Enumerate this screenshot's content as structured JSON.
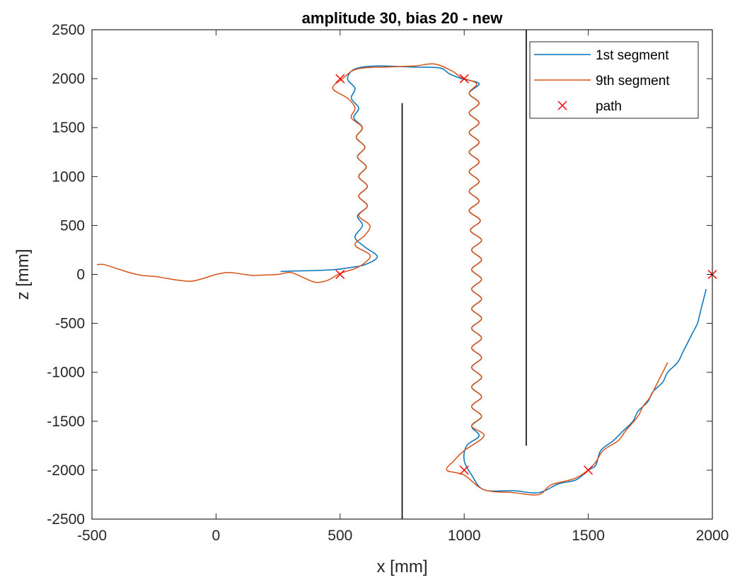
{
  "chart_data": {
    "type": "line",
    "title": "amplitude 30, bias 20 - new",
    "xlabel": "x [mm]",
    "ylabel": "z [mm]",
    "xlim": [
      -500,
      2000
    ],
    "ylim": [
      -2500,
      2500
    ],
    "xticks": [
      -500,
      0,
      500,
      1000,
      1500,
      2000
    ],
    "yticks": [
      -2500,
      -2000,
      -1500,
      -1000,
      -500,
      0,
      500,
      1000,
      1500,
      2000,
      2500
    ],
    "xtick_labels": [
      "-500",
      "0",
      "500",
      "1000",
      "1500",
      "2000"
    ],
    "ytick_labels": [
      "-2500",
      "-2000",
      "-1500",
      "-1000",
      "-500",
      "0",
      "500",
      "1000",
      "1500",
      "2000",
      "2500"
    ],
    "grid": false,
    "legend_position": "top-right",
    "colors": {
      "seg1": "#0072BD",
      "seg9": "#D95319",
      "path": "#FF0000",
      "wall": "#000000"
    },
    "walls": [
      {
        "x": 750,
        "z": [
          -2500,
          1750
        ]
      },
      {
        "x": 1250,
        "z": [
          -1750,
          2500
        ]
      }
    ],
    "series": [
      {
        "name": "1st segment",
        "points": [
          [
            260,
            30
          ],
          [
            320,
            35
          ],
          [
            400,
            40
          ],
          [
            480,
            50
          ],
          [
            540,
            70
          ],
          [
            600,
            100
          ],
          [
            650,
            180
          ],
          [
            600,
            280
          ],
          [
            560,
            380
          ],
          [
            590,
            500
          ],
          [
            570,
            600
          ],
          [
            610,
            700
          ],
          [
            575,
            800
          ],
          [
            610,
            900
          ],
          [
            575,
            1000
          ],
          [
            605,
            1100
          ],
          [
            570,
            1200
          ],
          [
            600,
            1300
          ],
          [
            565,
            1400
          ],
          [
            590,
            1500
          ],
          [
            555,
            1600
          ],
          [
            575,
            1700
          ],
          [
            545,
            1800
          ],
          [
            560,
            1900
          ],
          [
            530,
            2000
          ],
          [
            560,
            2100
          ],
          [
            650,
            2130
          ],
          [
            780,
            2120
          ],
          [
            900,
            2110
          ],
          [
            940,
            2050
          ],
          [
            990,
            2000
          ],
          [
            1060,
            1950
          ],
          [
            1020,
            1850
          ],
          [
            1060,
            1750
          ],
          [
            1020,
            1650
          ],
          [
            1060,
            1550
          ],
          [
            1020,
            1450
          ],
          [
            1060,
            1350
          ],
          [
            1020,
            1250
          ],
          [
            1060,
            1150
          ],
          [
            1020,
            1050
          ],
          [
            1060,
            950
          ],
          [
            1020,
            850
          ],
          [
            1060,
            750
          ],
          [
            1020,
            650
          ],
          [
            1065,
            550
          ],
          [
            1025,
            450
          ],
          [
            1070,
            350
          ],
          [
            1030,
            250
          ],
          [
            1070,
            150
          ],
          [
            1030,
            50
          ],
          [
            1070,
            -50
          ],
          [
            1030,
            -150
          ],
          [
            1070,
            -250
          ],
          [
            1030,
            -350
          ],
          [
            1070,
            -450
          ],
          [
            1030,
            -550
          ],
          [
            1070,
            -650
          ],
          [
            1030,
            -750
          ],
          [
            1070,
            -850
          ],
          [
            1030,
            -950
          ],
          [
            1070,
            -1050
          ],
          [
            1030,
            -1150
          ],
          [
            1070,
            -1250
          ],
          [
            1030,
            -1350
          ],
          [
            1070,
            -1450
          ],
          [
            1030,
            -1550
          ],
          [
            1060,
            -1650
          ],
          [
            1010,
            -1750
          ],
          [
            1000,
            -1900
          ],
          [
            1030,
            -2050
          ],
          [
            1080,
            -2200
          ],
          [
            1200,
            -2210
          ],
          [
            1300,
            -2230
          ],
          [
            1380,
            -2140
          ],
          [
            1450,
            -2100
          ],
          [
            1500,
            -2000
          ],
          [
            1530,
            -1950
          ],
          [
            1550,
            -1800
          ],
          [
            1600,
            -1700
          ],
          [
            1640,
            -1600
          ],
          [
            1680,
            -1500
          ],
          [
            1700,
            -1400
          ],
          [
            1740,
            -1300
          ],
          [
            1760,
            -1200
          ],
          [
            1800,
            -1100
          ],
          [
            1820,
            -1000
          ],
          [
            1860,
            -900
          ],
          [
            1880,
            -800
          ],
          [
            1900,
            -700
          ],
          [
            1920,
            -600
          ],
          [
            1940,
            -500
          ],
          [
            1950,
            -400
          ],
          [
            1960,
            -300
          ],
          [
            1975,
            -150
          ]
        ]
      },
      {
        "name": "9th segment",
        "points": [
          [
            -480,
            100
          ],
          [
            -450,
            100
          ],
          [
            -400,
            60
          ],
          [
            -350,
            20
          ],
          [
            -300,
            -10
          ],
          [
            -250,
            -20
          ],
          [
            -200,
            -40
          ],
          [
            -150,
            -60
          ],
          [
            -100,
            -70
          ],
          [
            -50,
            -40
          ],
          [
            0,
            0
          ],
          [
            50,
            20
          ],
          [
            100,
            5
          ],
          [
            150,
            -10
          ],
          [
            200,
            -5
          ],
          [
            250,
            0
          ],
          [
            300,
            20
          ],
          [
            350,
            -30
          ],
          [
            400,
            -80
          ],
          [
            450,
            -60
          ],
          [
            500,
            10
          ],
          [
            560,
            60
          ],
          [
            600,
            120
          ],
          [
            620,
            200
          ],
          [
            560,
            300
          ],
          [
            600,
            400
          ],
          [
            620,
            500
          ],
          [
            575,
            600
          ],
          [
            610,
            700
          ],
          [
            575,
            800
          ],
          [
            610,
            900
          ],
          [
            575,
            1000
          ],
          [
            605,
            1100
          ],
          [
            570,
            1200
          ],
          [
            600,
            1300
          ],
          [
            565,
            1400
          ],
          [
            590,
            1500
          ],
          [
            545,
            1600
          ],
          [
            560,
            1700
          ],
          [
            530,
            1800
          ],
          [
            470,
            1900
          ],
          [
            510,
            2000
          ],
          [
            570,
            2100
          ],
          [
            700,
            2120
          ],
          [
            800,
            2130
          ],
          [
            880,
            2150
          ],
          [
            950,
            2080
          ],
          [
            990,
            2010
          ],
          [
            1050,
            1950
          ],
          [
            1020,
            1850
          ],
          [
            1060,
            1750
          ],
          [
            1020,
            1650
          ],
          [
            1060,
            1550
          ],
          [
            1020,
            1450
          ],
          [
            1060,
            1350
          ],
          [
            1020,
            1250
          ],
          [
            1060,
            1150
          ],
          [
            1020,
            1050
          ],
          [
            1060,
            950
          ],
          [
            1020,
            850
          ],
          [
            1060,
            750
          ],
          [
            1020,
            650
          ],
          [
            1065,
            550
          ],
          [
            1025,
            450
          ],
          [
            1070,
            350
          ],
          [
            1030,
            250
          ],
          [
            1070,
            150
          ],
          [
            1030,
            50
          ],
          [
            1070,
            -50
          ],
          [
            1030,
            -150
          ],
          [
            1070,
            -250
          ],
          [
            1030,
            -350
          ],
          [
            1070,
            -450
          ],
          [
            1030,
            -550
          ],
          [
            1070,
            -650
          ],
          [
            1030,
            -750
          ],
          [
            1070,
            -850
          ],
          [
            1030,
            -950
          ],
          [
            1070,
            -1050
          ],
          [
            1030,
            -1150
          ],
          [
            1070,
            -1250
          ],
          [
            1030,
            -1350
          ],
          [
            1070,
            -1450
          ],
          [
            1030,
            -1550
          ],
          [
            1080,
            -1650
          ],
          [
            1000,
            -1800
          ],
          [
            960,
            -1900
          ],
          [
            930,
            -2000
          ],
          [
            1000,
            -2050
          ],
          [
            1080,
            -2200
          ],
          [
            1200,
            -2230
          ],
          [
            1300,
            -2250
          ],
          [
            1350,
            -2150
          ],
          [
            1450,
            -2080
          ],
          [
            1520,
            -1950
          ],
          [
            1560,
            -1800
          ],
          [
            1620,
            -1700
          ],
          [
            1650,
            -1600
          ],
          [
            1700,
            -1450
          ],
          [
            1720,
            -1350
          ],
          [
            1750,
            -1250
          ],
          [
            1780,
            -1100
          ],
          [
            1800,
            -1000
          ],
          [
            1820,
            -900
          ]
        ]
      },
      {
        "name": "path",
        "marker": "x",
        "points": [
          [
            500,
            2000
          ],
          [
            1000,
            2000
          ],
          [
            500,
            0
          ],
          [
            1000,
            -2000
          ],
          [
            1500,
            -2000
          ],
          [
            2000,
            0
          ]
        ]
      }
    ]
  }
}
